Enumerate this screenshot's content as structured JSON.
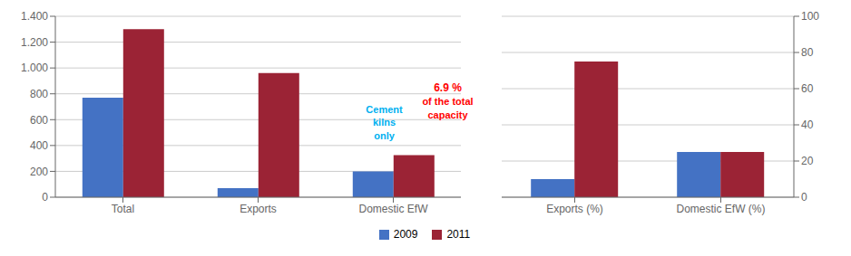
{
  "chart_data": [
    {
      "type": "bar",
      "categories": [
        "Total",
        "Exports",
        "Domestic EfW"
      ],
      "series": [
        {
          "name": "2009",
          "color": "#4472C4",
          "values": [
            770,
            70,
            200
          ]
        },
        {
          "name": "2011",
          "color": "#9B2335",
          "values": [
            1300,
            960,
            325
          ]
        }
      ],
      "ylim": [
        0,
        1400
      ],
      "yticks": [
        0,
        200,
        400,
        600,
        800,
        {
          "value": 1000,
          "label": "1.000"
        },
        {
          "value": 1200,
          "label": "1.200"
        },
        {
          "value": 1400,
          "label": "1.400"
        }
      ],
      "grid": true,
      "legend": "bottom",
      "annotations": [
        {
          "text": "Cement\nkilns\nonly",
          "color": "#00B0F0"
        },
        {
          "text": "6.9 %",
          "color": "#FF0000"
        },
        {
          "text": "of the total\ncapacity",
          "color": "#FF0000"
        }
      ]
    },
    {
      "type": "bar",
      "categories": [
        "Exports (%)",
        "Domestic EfW (%)"
      ],
      "series": [
        {
          "name": "2009",
          "color": "#4472C4",
          "values": [
            10,
            25
          ]
        },
        {
          "name": "2011",
          "color": "#9B2335",
          "values": [
            75,
            25
          ]
        }
      ],
      "ylim": [
        0,
        100
      ],
      "yticks": [
        0,
        20,
        40,
        60,
        80,
        100
      ],
      "grid": true
    }
  ]
}
